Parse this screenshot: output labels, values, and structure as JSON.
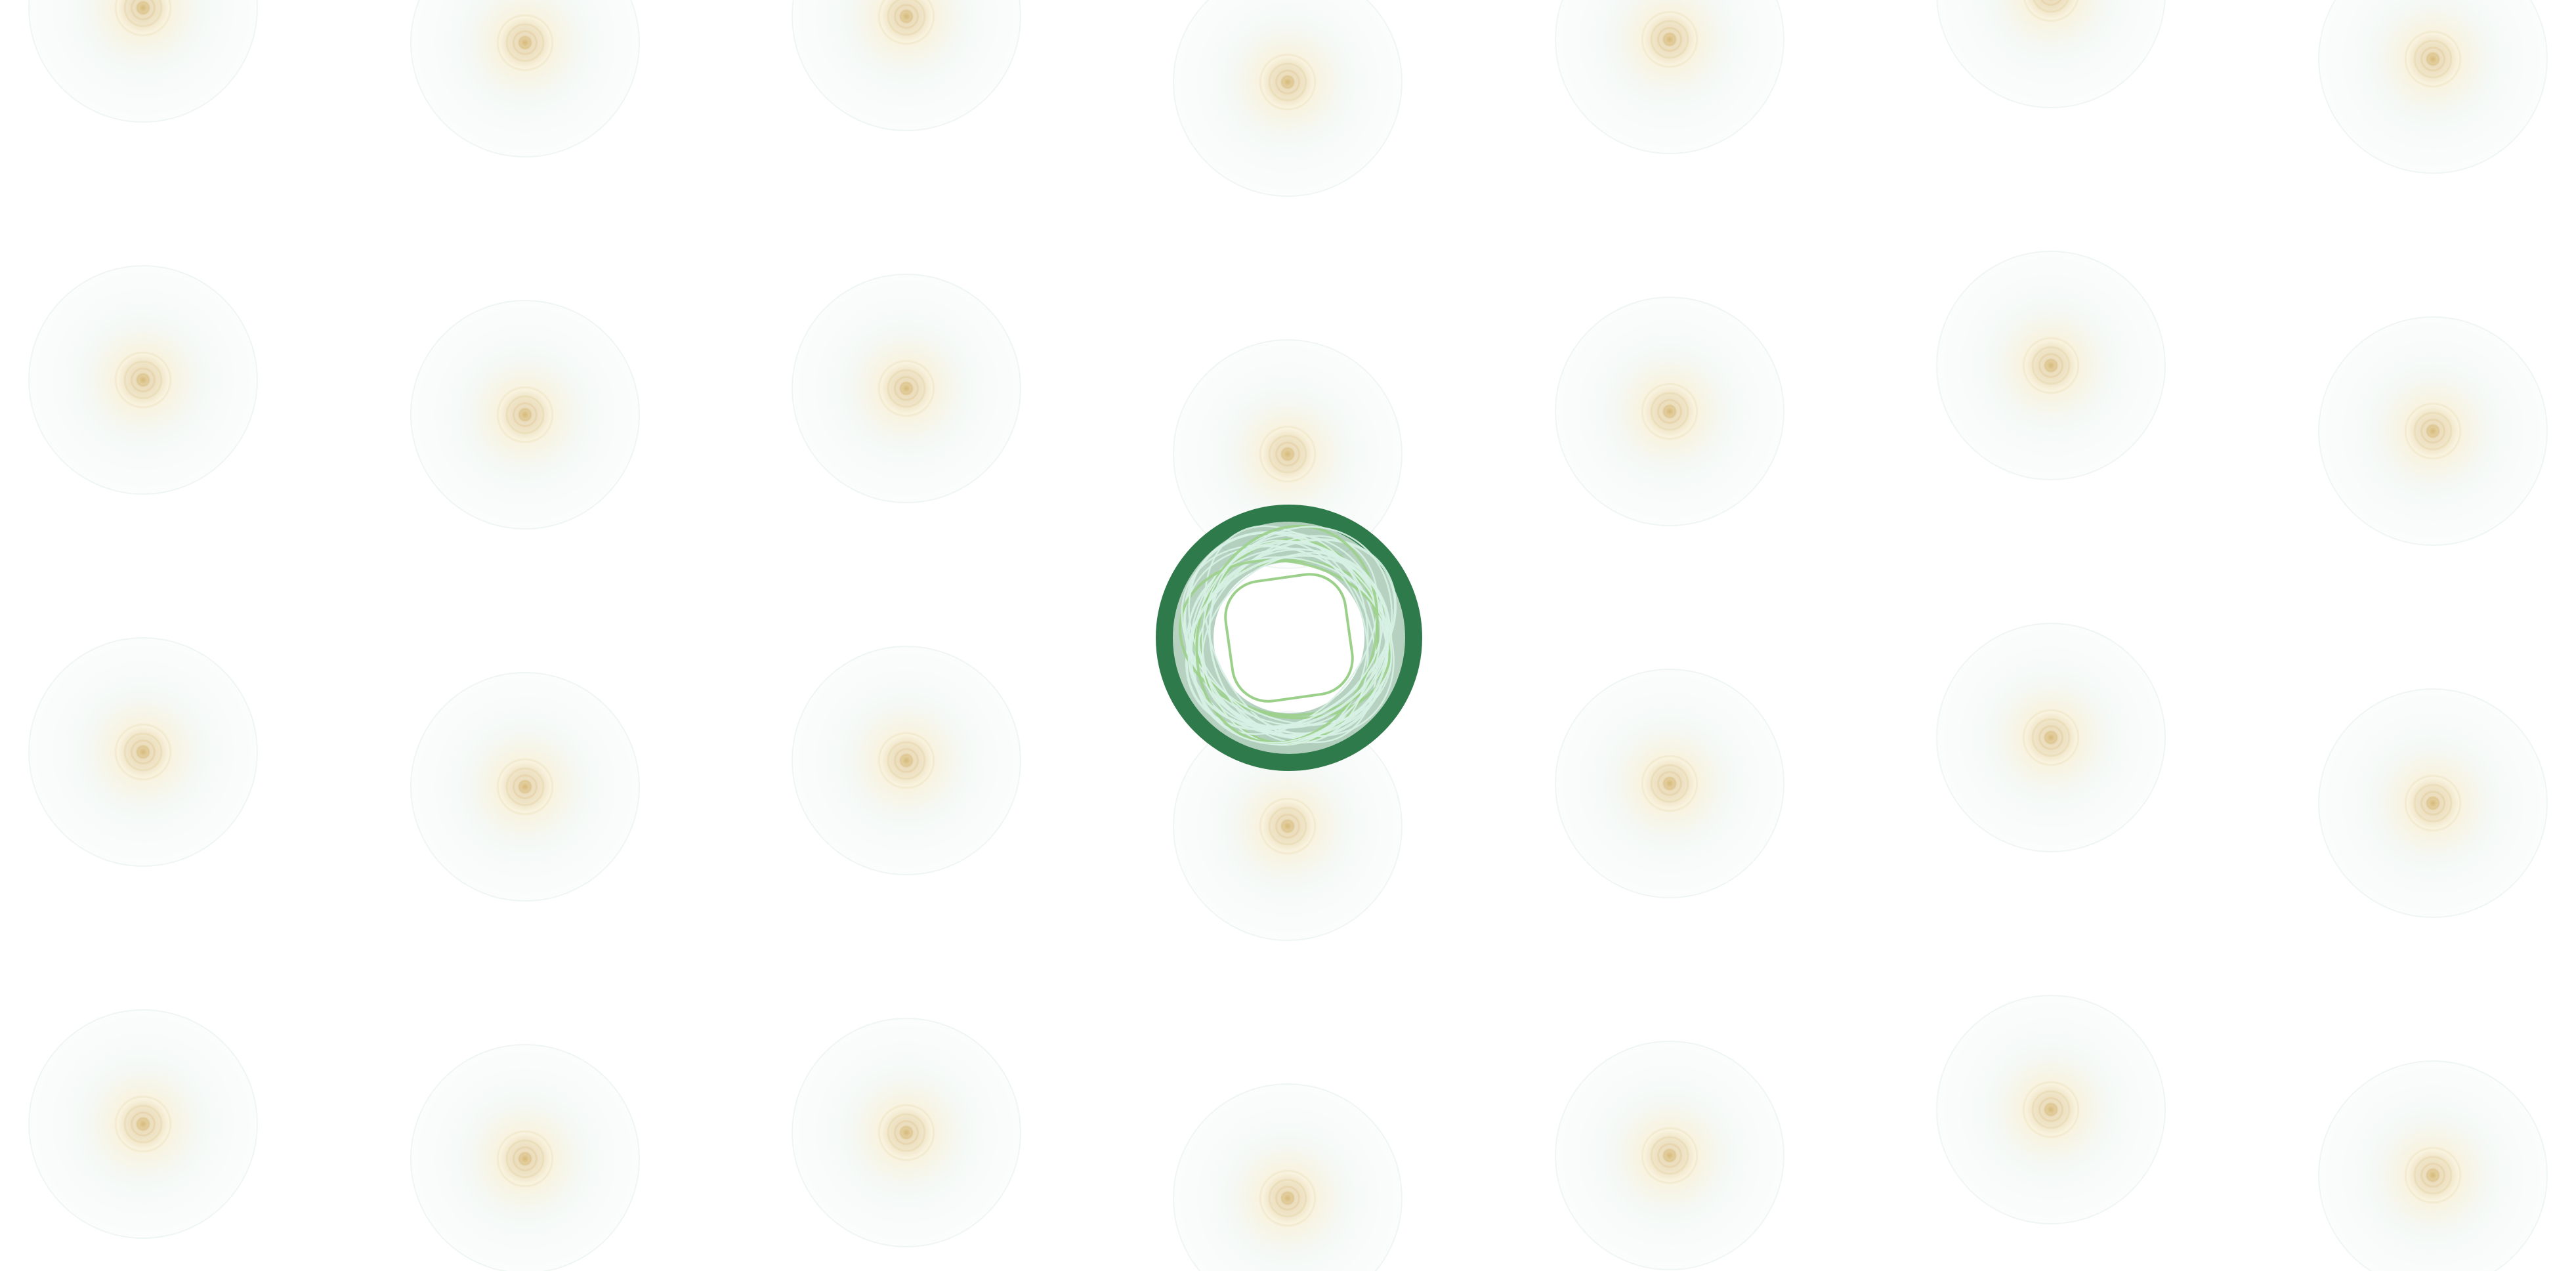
{
  "background": {
    "color": "#ffffff",
    "pattern": "soft-radial-dots",
    "dot_inner_color": "#c9a24a",
    "dot_mid_color": "#f3e7c2",
    "dot_outer_color": "#e2efe8"
  },
  "loader": {
    "icon": "spinner-ring-icon",
    "ring_color": "#2f7a4a",
    "thread_color": "#d8f1e6",
    "accent_color": "#9bd08a"
  }
}
